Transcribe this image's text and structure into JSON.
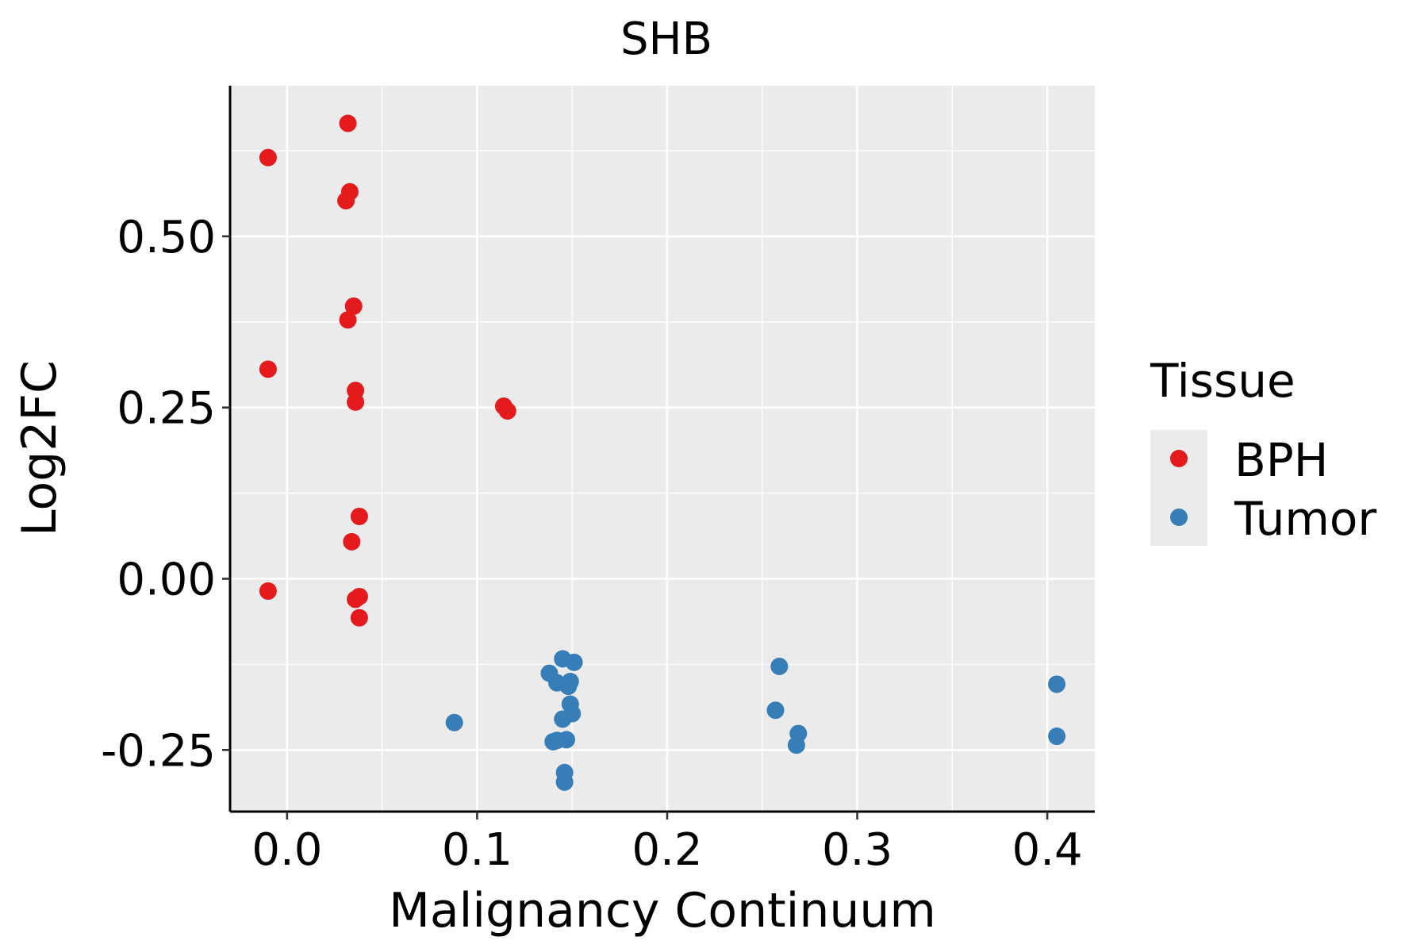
{
  "chart_data": {
    "type": "scatter",
    "title": "SHB",
    "xlabel": "Malignancy Continuum",
    "ylabel": "Log2FC",
    "xlim": [
      -0.03,
      0.425
    ],
    "ylim": [
      -0.34,
      0.72
    ],
    "x_ticks": [
      {
        "value": 0.0,
        "label": "0.0"
      },
      {
        "value": 0.1,
        "label": "0.1"
      },
      {
        "value": 0.2,
        "label": "0.2"
      },
      {
        "value": 0.3,
        "label": "0.3"
      },
      {
        "value": 0.4,
        "label": "0.4"
      }
    ],
    "y_ticks": [
      {
        "value": -0.25,
        "label": "-0.25"
      },
      {
        "value": 0.0,
        "label": "0.00"
      },
      {
        "value": 0.25,
        "label": "0.25"
      },
      {
        "value": 0.5,
        "label": "0.50"
      }
    ],
    "grid": true,
    "legend": {
      "title": "Tissue",
      "position": "right"
    },
    "series": [
      {
        "name": "BPH",
        "color": "#E41A1C",
        "points": [
          {
            "x": -0.01,
            "y": 0.615
          },
          {
            "x": 0.032,
            "y": 0.665
          },
          {
            "x": 0.033,
            "y": 0.565
          },
          {
            "x": 0.031,
            "y": 0.552
          },
          {
            "x": 0.035,
            "y": 0.398
          },
          {
            "x": 0.032,
            "y": 0.378
          },
          {
            "x": -0.01,
            "y": 0.306
          },
          {
            "x": 0.036,
            "y": 0.275
          },
          {
            "x": 0.036,
            "y": 0.258
          },
          {
            "x": 0.114,
            "y": 0.252
          },
          {
            "x": 0.116,
            "y": 0.245
          },
          {
            "x": 0.038,
            "y": 0.091
          },
          {
            "x": 0.034,
            "y": 0.054
          },
          {
            "x": -0.01,
            "y": -0.018
          },
          {
            "x": 0.038,
            "y": -0.026
          },
          {
            "x": 0.036,
            "y": -0.03
          },
          {
            "x": 0.038,
            "y": -0.057
          }
        ]
      },
      {
        "name": "Tumor",
        "color": "#377EB8",
        "points": [
          {
            "x": 0.088,
            "y": -0.21
          },
          {
            "x": 0.138,
            "y": -0.138
          },
          {
            "x": 0.142,
            "y": -0.152
          },
          {
            "x": 0.145,
            "y": -0.117
          },
          {
            "x": 0.151,
            "y": -0.122
          },
          {
            "x": 0.149,
            "y": -0.15
          },
          {
            "x": 0.148,
            "y": -0.157
          },
          {
            "x": 0.149,
            "y": -0.183
          },
          {
            "x": 0.15,
            "y": -0.197
          },
          {
            "x": 0.145,
            "y": -0.205
          },
          {
            "x": 0.147,
            "y": -0.235
          },
          {
            "x": 0.142,
            "y": -0.236
          },
          {
            "x": 0.14,
            "y": -0.238
          },
          {
            "x": 0.146,
            "y": -0.283
          },
          {
            "x": 0.146,
            "y": -0.297
          },
          {
            "x": 0.259,
            "y": -0.128
          },
          {
            "x": 0.257,
            "y": -0.192
          },
          {
            "x": 0.269,
            "y": -0.226
          },
          {
            "x": 0.268,
            "y": -0.243
          },
          {
            "x": 0.405,
            "y": -0.154
          },
          {
            "x": 0.405,
            "y": -0.23
          }
        ]
      }
    ]
  }
}
